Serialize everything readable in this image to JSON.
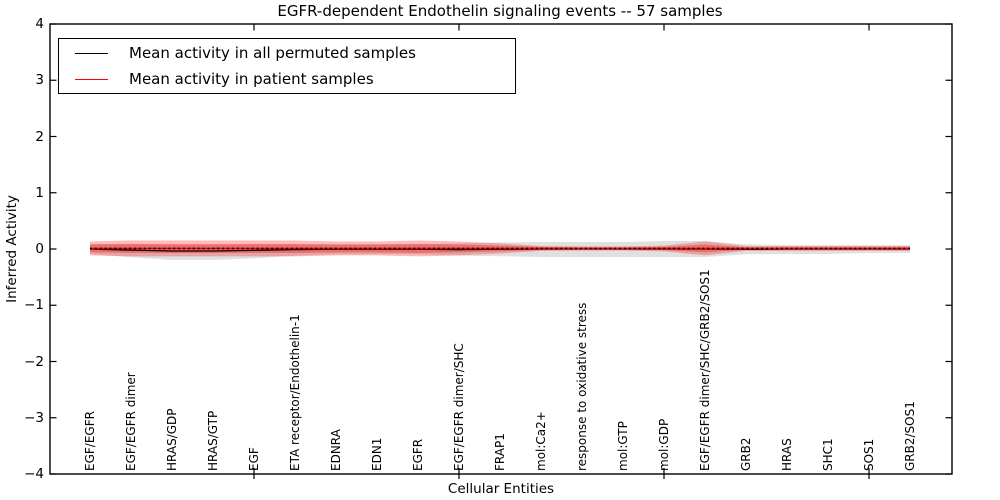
{
  "title": "EGFR-dependent Endothelin signaling events -- 57 samples",
  "legend": {
    "entries": [
      {
        "label": "Mean activity in all permuted samples",
        "color": "#000000"
      },
      {
        "label": "Mean activity in patient samples",
        "color": "#ff0000"
      }
    ]
  },
  "axes": {
    "ylabel": "Inferred Activity",
    "xlabel": "Cellular Entities",
    "y_tick_labels": [
      "4",
      "3",
      "2",
      "1",
      "0",
      "−1",
      "−2",
      "−3",
      "−4"
    ],
    "y_tick_values": [
      4,
      3,
      2,
      1,
      0,
      -1,
      -2,
      -3,
      -4
    ],
    "ylim": [
      -4,
      4
    ],
    "x_major_tick_indices": [
      4,
      9,
      14,
      19
    ],
    "grid": false,
    "legend_position": "upper left"
  },
  "chart_data": {
    "type": "line",
    "title": "EGFR-dependent Endothelin signaling events -- 57 samples",
    "xlabel": "Cellular Entities",
    "ylabel": "Inferred Activity",
    "ylim": [
      -4,
      4
    ],
    "categories": [
      "EGF/EGFR",
      "EGF/EGFR dimer",
      "HRAS/GDP",
      "HRAS/GTP",
      "EGF",
      "ETA receptor/Endothelin-1",
      "EDNRA",
      "EDN1",
      "EGFR",
      "EGF/EGFR dimer/SHC",
      "FRAP1",
      "mol:Ca2+",
      "response to oxidative stress",
      "mol:GTP",
      "mol:GDP",
      "EGF/EGFR dimer/SHC/GRB2/SOS1",
      "GRB2",
      "HRAS",
      "SHC1",
      "SOS1",
      "GRB2/SOS1"
    ],
    "series": [
      {
        "name": "Mean activity in all permuted samples",
        "color": "#000000",
        "mean": [
          0,
          -0.02,
          -0.035,
          -0.035,
          -0.025,
          -0.01,
          -0.005,
          -0.005,
          -0.005,
          -0.01,
          -0.005,
          0,
          0,
          0,
          0,
          0,
          -0.005,
          0,
          0,
          0,
          0
        ],
        "std_upper": [
          0.089,
          0.107,
          0.107,
          0.107,
          0.107,
          0.089,
          0.089,
          0.089,
          0.089,
          0.107,
          0.124,
          0.124,
          0.124,
          0.124,
          0.142,
          0.142,
          0.089,
          0.071,
          0.071,
          0.071,
          0.071
        ],
        "std_lower": [
          0.089,
          0.124,
          0.16,
          0.16,
          0.142,
          0.107,
          0.089,
          0.089,
          0.089,
          0.107,
          0.124,
          0.142,
          0.142,
          0.142,
          0.142,
          0.142,
          0.089,
          0.089,
          0.089,
          0.071,
          0.071
        ]
      },
      {
        "name": "Mean activity in patient samples",
        "color": "#ff0000",
        "mean": [
          0.01,
          0.01,
          0.01,
          0.01,
          0.01,
          0.01,
          0.01,
          0.01,
          0.01,
          0.01,
          0.01,
          0.01,
          0.01,
          0.01,
          0.01,
          0.01,
          0.01,
          0.01,
          0.01,
          0.01,
          0.01
        ],
        "std_outer": [
          0.124,
          0.142,
          0.142,
          0.142,
          0.142,
          0.142,
          0.124,
          0.124,
          0.142,
          0.124,
          0.089,
          0.044,
          0.036,
          0.036,
          0.053,
          0.124,
          0.044,
          0.044,
          0.044,
          0.044,
          0.044
        ],
        "std_inner": [
          0.071,
          0.08,
          0.08,
          0.08,
          0.08,
          0.08,
          0.071,
          0.071,
          0.08,
          0.071,
          0.053,
          0.027,
          0.018,
          0.018,
          0.027,
          0.071,
          0.021,
          0.021,
          0.021,
          0.021,
          0.021
        ]
      }
    ]
  },
  "colors": {
    "permuted_line": "#000000",
    "patient_line": "#ff0000",
    "permuted_band": "rgba(0,0,0,0.12)",
    "patient_band_outer": "rgba(255,0,0,0.27)",
    "patient_band_inner": "rgba(221,0,0,0.30)",
    "frame": "#000000"
  }
}
